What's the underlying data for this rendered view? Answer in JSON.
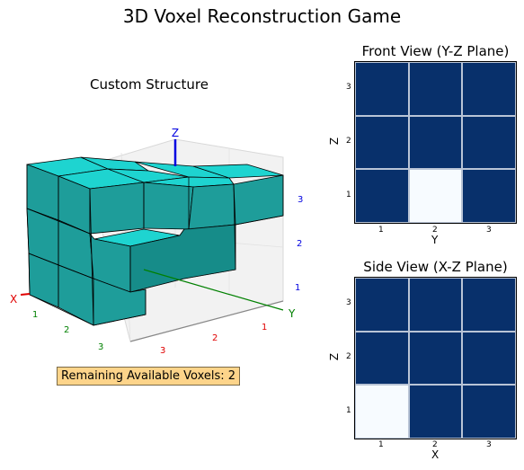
{
  "title": "3D Voxel Reconstruction Game",
  "structure": {
    "title": "Custom Structure",
    "axis_labels": {
      "x": "X",
      "y": "Y",
      "z": "Z"
    },
    "x_ticks": [
      "1",
      "2",
      "3"
    ],
    "y_ticks": [
      "1",
      "2",
      "3"
    ],
    "z_ticks": [
      "1",
      "2",
      "3"
    ],
    "colors": {
      "voxel_front": "#1e9d9a",
      "voxel_top": "#1ed4d0",
      "voxel_side": "#0f7876",
      "x_axis": "#e00000",
      "y_axis": "#008000",
      "z_axis": "#0000e0"
    }
  },
  "status": {
    "text": "Remaining Available Voxels: 2"
  },
  "front_view": {
    "title": "Front View (Y-Z Plane)",
    "xlabel": "Y",
    "ylabel": "Z",
    "x_ticks": [
      "1",
      "2",
      "3"
    ],
    "y_ticks": [
      "1",
      "2",
      "3"
    ],
    "grid": [
      [
        1,
        1,
        1
      ],
      [
        1,
        1,
        1
      ],
      [
        1,
        0,
        1
      ]
    ]
  },
  "side_view": {
    "title": "Side View (X-Z Plane)",
    "xlabel": "X",
    "ylabel": "Z",
    "x_ticks": [
      "1",
      "2",
      "3"
    ],
    "y_ticks": [
      "1",
      "2",
      "3"
    ],
    "grid": [
      [
        1,
        1,
        1
      ],
      [
        1,
        1,
        1
      ],
      [
        0,
        1,
        1
      ]
    ]
  }
}
